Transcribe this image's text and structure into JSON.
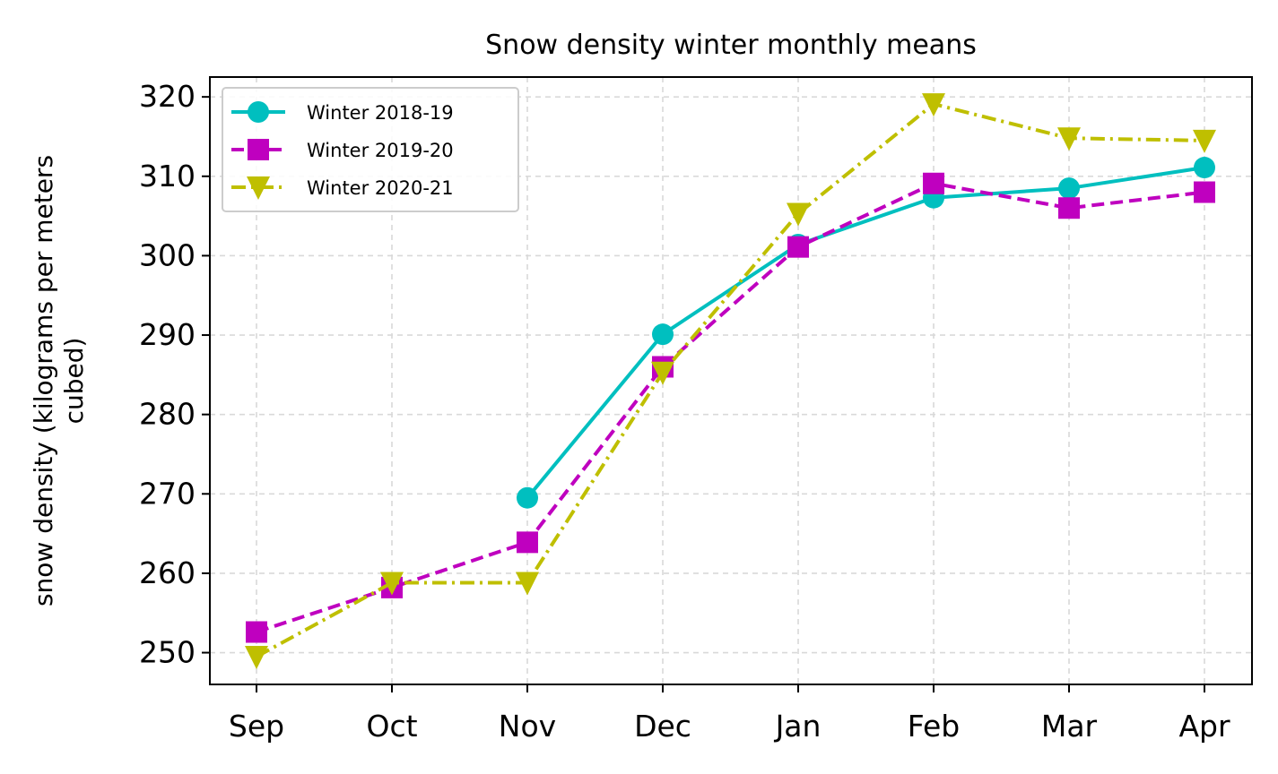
{
  "chart_data": {
    "type": "line",
    "title": "Snow density winter monthly means",
    "xlabel": "",
    "ylabel_lines": [
      "snow density (kilograms per meters",
      "cubed)"
    ],
    "categories": [
      "Sep",
      "Oct",
      "Nov",
      "Dec",
      "Jan",
      "Feb",
      "Mar",
      "Apr"
    ],
    "ylim": [
      246,
      322.5
    ],
    "yticks": [
      250,
      260,
      270,
      280,
      290,
      300,
      310,
      320
    ],
    "grid": true,
    "legend_position": "top-left",
    "series": [
      {
        "name": "Winter 2018-19",
        "color": "#00bfbf",
        "marker": "circle",
        "linestyle": "solid",
        "values": [
          null,
          null,
          269.5,
          290.1,
          301.4,
          307.3,
          308.5,
          311.1
        ]
      },
      {
        "name": "Winter 2019-20",
        "color": "#bf00bf",
        "marker": "square",
        "linestyle": "dashed",
        "values": [
          252.6,
          258.2,
          263.9,
          286.0,
          301.1,
          309.1,
          306.0,
          308.0
        ]
      },
      {
        "name": "Winter 2020-21",
        "color": "#bfbf00",
        "marker": "triangle-down",
        "linestyle": "dashdot",
        "values": [
          249.5,
          258.8,
          258.8,
          285.3,
          305.3,
          319.1,
          314.8,
          314.5
        ]
      }
    ]
  }
}
